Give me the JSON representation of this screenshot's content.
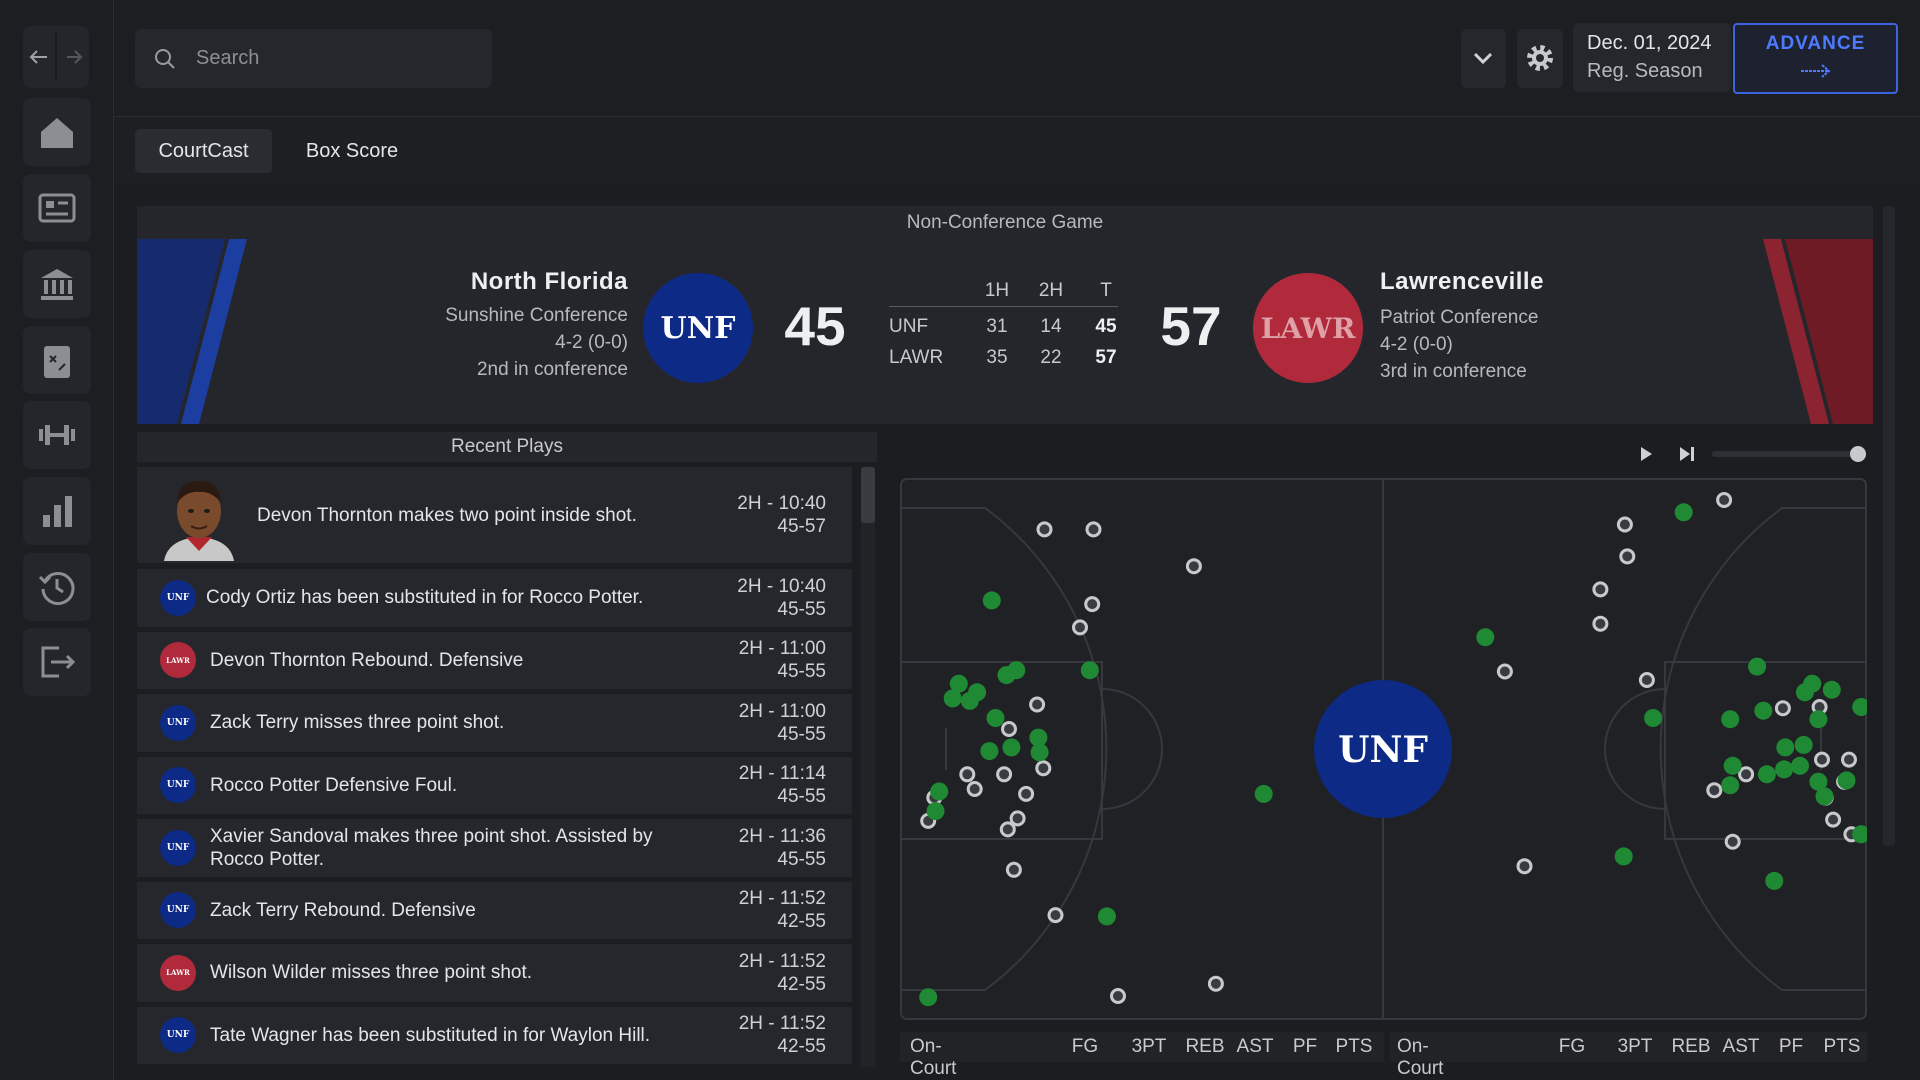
{
  "search": {
    "placeholder": "Search"
  },
  "date": {
    "date": "Dec. 01, 2024",
    "phase": "Reg. Season"
  },
  "advance": {
    "label": "ADVANCE"
  },
  "tabs": [
    "CourtCast",
    "Box Score"
  ],
  "game": {
    "type": "Non-Conference Game",
    "home": {
      "name": "North Florida",
      "conference": "Sunshine Conference",
      "record": "4-2 (0-0)",
      "standing": "2nd in conference",
      "abbr": "UNF",
      "score": 45
    },
    "away": {
      "name": "Lawrenceville",
      "conference": "Patriot Conference",
      "record": "4-2 (0-0)",
      "standing": "3rd in conference",
      "abbr": "LAWR",
      "score": 57
    },
    "linescore": {
      "headers": [
        "1H",
        "2H",
        "T"
      ],
      "rows": [
        [
          "UNF",
          31,
          14,
          45
        ],
        [
          "LAWR",
          35,
          22,
          57
        ]
      ]
    }
  },
  "recent_plays": {
    "title": "Recent Plays",
    "plays": [
      {
        "team": "LAWR",
        "text": "Devon Thornton makes two point inside shot.",
        "time": "2H - 10:40",
        "score": "45-57"
      },
      {
        "team": "UNF",
        "text": "Cody Ortiz has been substituted in for Rocco Potter.",
        "time": "2H - 10:40",
        "score": "45-55"
      },
      {
        "team": "LAWR",
        "text": "Devon Thornton Rebound. Defensive",
        "time": "2H - 11:00",
        "score": "45-55"
      },
      {
        "team": "UNF",
        "text": "Zack Terry misses three point shot.",
        "time": "2H - 11:00",
        "score": "45-55"
      },
      {
        "team": "UNF",
        "text": "Rocco Potter Defensive Foul.",
        "time": "2H - 11:14",
        "score": "45-55"
      },
      {
        "team": "UNF",
        "text": "Xavier Sandoval makes three point shot. Assisted by Rocco Potter.",
        "time": "2H - 11:36",
        "score": "45-55"
      },
      {
        "team": "UNF",
        "text": "Zack Terry Rebound. Defensive",
        "time": "2H - 11:52",
        "score": "42-55"
      },
      {
        "team": "LAWR",
        "text": "Wilson Wilder misses three point shot.",
        "time": "2H - 11:52",
        "score": "42-55"
      },
      {
        "team": "UNF",
        "text": "Tate Wagner has been substituted in for Waylon Hill.",
        "time": "2H - 11:52",
        "score": "42-55"
      }
    ]
  },
  "court": {
    "logo": "UNF"
  },
  "stat_headers": {
    "left": [
      "On-Court",
      "FG",
      "3PT",
      "REB",
      "AST",
      "PF",
      "PTS"
    ],
    "right": [
      "On-Court",
      "FG",
      "3PT",
      "REB",
      "AST",
      "PF",
      "PTS"
    ]
  }
}
